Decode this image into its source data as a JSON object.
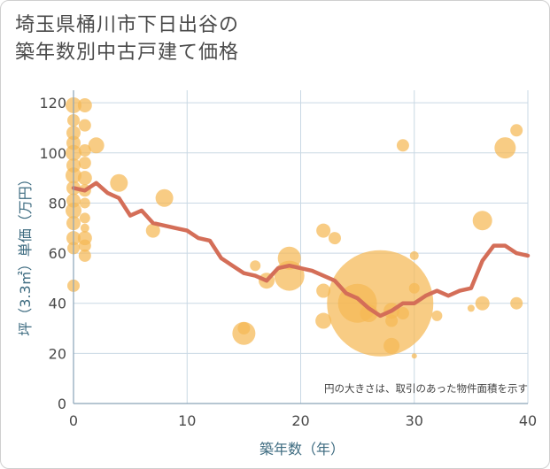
{
  "title_lines": [
    "埼玉県桶川市下日出谷の",
    "築年数別中古戸建て価格"
  ],
  "colors": {
    "bubble": "#f5b955",
    "line": "#d46e58",
    "grid": "#c9d8e4",
    "axis": "#8aa4b8",
    "axis_label": "#3d6b80"
  },
  "chart_data": {
    "type": "scatter",
    "title": "埼玉県桶川市下日出谷の築年数別中古戸建て価格",
    "xlabel": "築年数（年）",
    "ylabel": "坪（3.3㎡）単価（万円）",
    "xlim": [
      0,
      40
    ],
    "ylim": [
      0,
      125
    ],
    "xticks": [
      0,
      10,
      20,
      30,
      40
    ],
    "yticks": [
      0,
      20,
      40,
      60,
      80,
      100,
      120
    ],
    "note": "円の大きさは、取引のあった物件面積を示す",
    "series": [
      {
        "name": "bubbles",
        "kind": "bubble",
        "points": [
          {
            "x": 0,
            "y": 119,
            "r": 9
          },
          {
            "x": 0,
            "y": 113,
            "r": 7
          },
          {
            "x": 0,
            "y": 108,
            "r": 8
          },
          {
            "x": 0,
            "y": 104,
            "r": 8
          },
          {
            "x": 0,
            "y": 100,
            "r": 9
          },
          {
            "x": 0,
            "y": 95,
            "r": 8
          },
          {
            "x": 0,
            "y": 91,
            "r": 9
          },
          {
            "x": 0,
            "y": 86,
            "r": 8
          },
          {
            "x": 0,
            "y": 81,
            "r": 8
          },
          {
            "x": 0,
            "y": 77,
            "r": 9
          },
          {
            "x": 0,
            "y": 72,
            "r": 8
          },
          {
            "x": 0,
            "y": 66,
            "r": 8
          },
          {
            "x": 0,
            "y": 62,
            "r": 7
          },
          {
            "x": 0,
            "y": 47,
            "r": 7
          },
          {
            "x": 1,
            "y": 119,
            "r": 8
          },
          {
            "x": 1,
            "y": 111,
            "r": 7
          },
          {
            "x": 1,
            "y": 101,
            "r": 7
          },
          {
            "x": 1,
            "y": 96,
            "r": 7
          },
          {
            "x": 1,
            "y": 90,
            "r": 8
          },
          {
            "x": 1,
            "y": 85,
            "r": 7
          },
          {
            "x": 1,
            "y": 80,
            "r": 6
          },
          {
            "x": 1,
            "y": 74,
            "r": 6
          },
          {
            "x": 1,
            "y": 70,
            "r": 5
          },
          {
            "x": 1,
            "y": 66,
            "r": 8
          },
          {
            "x": 1,
            "y": 63,
            "r": 7
          },
          {
            "x": 1,
            "y": 59,
            "r": 7
          },
          {
            "x": 2,
            "y": 103,
            "r": 9
          },
          {
            "x": 4,
            "y": 88,
            "r": 10
          },
          {
            "x": 7,
            "y": 69,
            "r": 8
          },
          {
            "x": 8,
            "y": 82,
            "r": 10
          },
          {
            "x": 15,
            "y": 30,
            "r": 7
          },
          {
            "x": 15,
            "y": 28,
            "r": 13
          },
          {
            "x": 16,
            "y": 55,
            "r": 6
          },
          {
            "x": 17,
            "y": 49,
            "r": 9
          },
          {
            "x": 19,
            "y": 58,
            "r": 13
          },
          {
            "x": 19,
            "y": 51,
            "r": 17
          },
          {
            "x": 22,
            "y": 69,
            "r": 8
          },
          {
            "x": 22,
            "y": 45,
            "r": 8
          },
          {
            "x": 22,
            "y": 33,
            "r": 9
          },
          {
            "x": 23,
            "y": 66,
            "r": 7
          },
          {
            "x": 25,
            "y": 40,
            "r": 22
          },
          {
            "x": 27,
            "y": 40,
            "r": 60
          },
          {
            "x": 26,
            "y": 36,
            "r": 10
          },
          {
            "x": 28,
            "y": 37,
            "r": 9
          },
          {
            "x": 28,
            "y": 33,
            "r": 7
          },
          {
            "x": 28,
            "y": 23,
            "r": 9
          },
          {
            "x": 29,
            "y": 103,
            "r": 7
          },
          {
            "x": 29,
            "y": 36,
            "r": 7
          },
          {
            "x": 30,
            "y": 59,
            "r": 5
          },
          {
            "x": 30,
            "y": 46,
            "r": 6
          },
          {
            "x": 30,
            "y": 19,
            "r": 3
          },
          {
            "x": 32,
            "y": 35,
            "r": 6
          },
          {
            "x": 35,
            "y": 38,
            "r": 4
          },
          {
            "x": 36,
            "y": 73,
            "r": 11
          },
          {
            "x": 36,
            "y": 40,
            "r": 8
          },
          {
            "x": 38,
            "y": 102,
            "r": 12
          },
          {
            "x": 39,
            "y": 109,
            "r": 7
          },
          {
            "x": 39,
            "y": 40,
            "r": 7
          }
        ]
      },
      {
        "name": "average",
        "kind": "line",
        "x": [
          0,
          1,
          2,
          3,
          4,
          5,
          6,
          7,
          8,
          9,
          10,
          11,
          12,
          13,
          14,
          15,
          16,
          17,
          18,
          19,
          20,
          21,
          22,
          23,
          24,
          25,
          26,
          27,
          28,
          29,
          30,
          31,
          32,
          33,
          34,
          35,
          36,
          37,
          38,
          39,
          40
        ],
        "values": [
          86,
          85,
          88,
          84,
          82,
          75,
          77,
          72,
          71,
          70,
          69,
          66,
          65,
          58,
          55,
          52,
          51,
          49,
          54,
          55,
          54,
          53,
          51,
          49,
          44,
          42,
          38,
          35,
          37,
          40,
          40,
          43,
          45,
          43,
          45,
          46,
          57,
          63,
          63,
          60,
          59
        ]
      }
    ]
  }
}
